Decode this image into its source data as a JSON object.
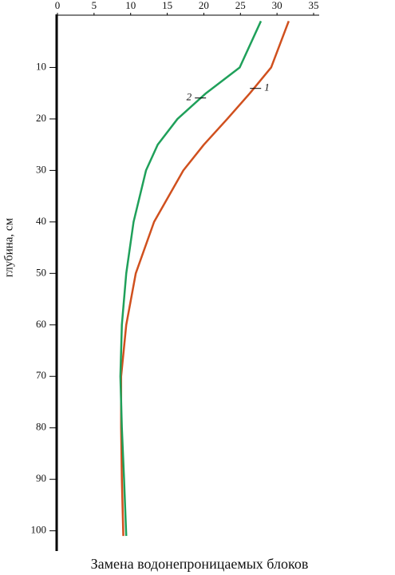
{
  "chart_data": {
    "type": "line",
    "title": "Замена водонепроницаемых блоков",
    "y_label": "глубина, см",
    "depth": [
      1,
      10,
      15,
      20,
      25,
      30,
      40,
      50,
      60,
      70,
      80,
      90,
      101
    ],
    "series": [
      {
        "name": "1",
        "color": "#d0501e",
        "values": [
          31.6,
          29.2,
          26.3,
          23.2,
          20.0,
          17.2,
          13.2,
          10.7,
          9.4,
          8.7,
          8.7,
          8.8,
          9.0
        ]
      },
      {
        "name": "2",
        "color": "#1fa05a",
        "values": [
          27.8,
          24.9,
          20.3,
          16.4,
          13.7,
          12.1,
          10.4,
          9.4,
          8.8,
          8.6,
          8.8,
          9.1,
          9.4
        ]
      }
    ],
    "xlim": [
      0,
      35
    ],
    "xticks": [
      0,
      5,
      10,
      15,
      20,
      25,
      30,
      35
    ],
    "ylim": [
      0,
      103
    ],
    "yticks": [
      10,
      20,
      30,
      40,
      50,
      60,
      70,
      80,
      90,
      100
    ],
    "y_inverted": true
  }
}
